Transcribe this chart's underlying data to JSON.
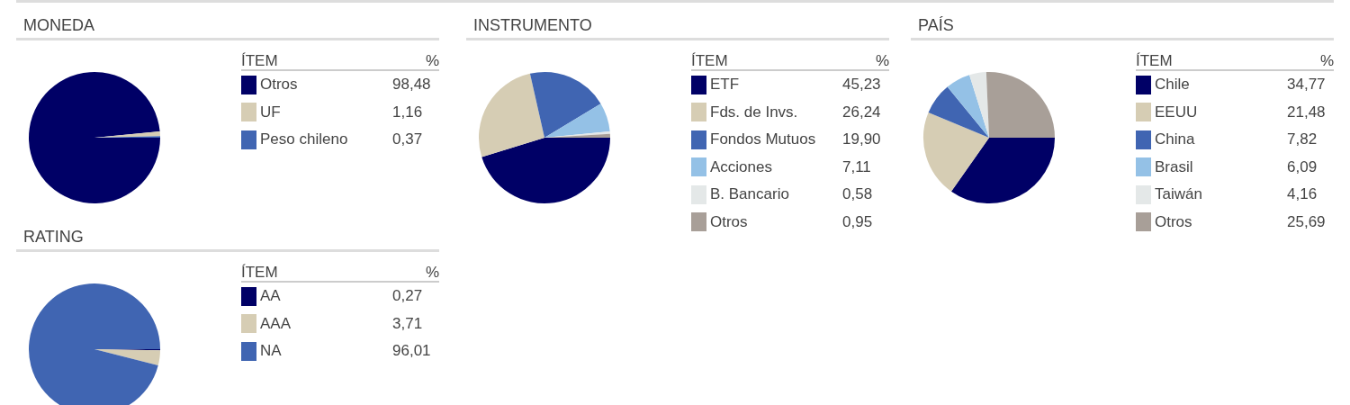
{
  "chart_data": [
    {
      "type": "pie",
      "title": "MONEDA",
      "legend_title": "ÍTEM",
      "annotations": [
        "%"
      ],
      "legend": "right",
      "categories": [
        "Otros",
        "UF",
        "Peso chileno"
      ],
      "values": [
        98.48,
        1.16,
        0.37
      ],
      "value_labels": [
        "98,48",
        "1,16",
        "0,37"
      ],
      "colors": [
        "#000066",
        "#d6cdb4",
        "#4065b2"
      ]
    },
    {
      "type": "pie",
      "title": "INSTRUMENTO",
      "legend_title": "ÍTEM",
      "annotations": [
        "%"
      ],
      "legend": "right",
      "categories": [
        "ETF",
        "Fds. de Invs.",
        "Fondos Mutuos",
        "Acciones",
        "B. Bancario",
        "Otros"
      ],
      "values": [
        45.23,
        26.24,
        19.9,
        7.11,
        0.58,
        0.95
      ],
      "value_labels": [
        "45,23",
        "26,24",
        "19,90",
        "7,11",
        "0,58",
        "0,95"
      ],
      "colors": [
        "#000066",
        "#d6cdb4",
        "#4065b2",
        "#94c1e6",
        "#e4e8e8",
        "#a89f98"
      ]
    },
    {
      "type": "pie",
      "title": "PAÍS",
      "legend_title": "ÍTEM",
      "annotations": [
        "%"
      ],
      "legend": "right",
      "categories": [
        "Chile",
        "EEUU",
        "China",
        "Brasil",
        "Taiwán",
        "Otros"
      ],
      "values": [
        34.77,
        21.48,
        7.82,
        6.09,
        4.16,
        25.69
      ],
      "value_labels": [
        "34,77",
        "21,48",
        "7,82",
        "6,09",
        "4,16",
        "25,69"
      ],
      "colors": [
        "#000066",
        "#d6cdb4",
        "#4065b2",
        "#94c1e6",
        "#e4e8e8",
        "#a89f98"
      ]
    },
    {
      "type": "pie",
      "title": "RATING",
      "legend_title": "ÍTEM",
      "annotations": [
        "%"
      ],
      "legend": "right",
      "categories": [
        "AA",
        "AAA",
        "NA"
      ],
      "values": [
        0.27,
        3.71,
        96.01
      ],
      "value_labels": [
        "0,27",
        "3,71",
        "96,01"
      ],
      "colors": [
        "#000066",
        "#d6cdb4",
        "#4065b2"
      ]
    }
  ]
}
